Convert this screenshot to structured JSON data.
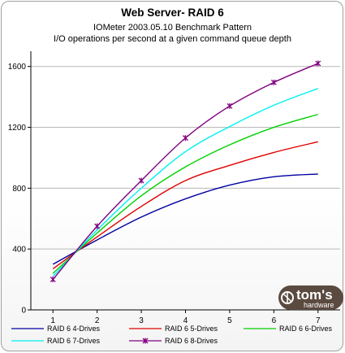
{
  "chart_data": {
    "type": "line",
    "title": "Web Server- RAID 6",
    "subtitle_1": "IOMeter 2003.05.10 Benchmark Pattern",
    "subtitle_2": "I/O operations per second at a given command queue depth",
    "x": [
      1,
      2,
      3,
      4,
      5,
      6,
      7
    ],
    "x_ticks": [
      "1",
      "2",
      "3",
      "4",
      "5",
      "6",
      "7"
    ],
    "y_ticks": [
      "0",
      "400",
      "800",
      "1200",
      "1600"
    ],
    "ylim": [
      0,
      1700
    ],
    "xlim": [
      0.5,
      7.5
    ],
    "grid": "horizontal",
    "legend_position": "bottom",
    "series": [
      {
        "name": "RAID 6 4-Drives",
        "color": "#0000a0",
        "marker": "none",
        "values": [
          300,
          460,
          610,
          730,
          820,
          875,
          893
        ]
      },
      {
        "name": "RAID 6 5-Drives",
        "color": "#e00000",
        "marker": "none",
        "values": [
          270,
          480,
          680,
          850,
          950,
          1035,
          1105
        ]
      },
      {
        "name": "RAID 6 6-Drives",
        "color": "#00d000",
        "marker": "none",
        "values": [
          240,
          505,
          750,
          940,
          1085,
          1200,
          1285
        ]
      },
      {
        "name": "RAID 6 7-Drives",
        "color": "#00f0f0",
        "marker": "none",
        "values": [
          220,
          525,
          800,
          1040,
          1205,
          1345,
          1455
        ]
      },
      {
        "name": "RAID 6 8-Drives",
        "color": "#800080",
        "marker": "star",
        "values": [
          200,
          550,
          850,
          1130,
          1340,
          1495,
          1620
        ]
      }
    ]
  },
  "logo": {
    "name": "tom's",
    "sub": "hardware",
    "colors": {
      "badge": "#5a4a40",
      "mark": "#ffffff"
    }
  }
}
